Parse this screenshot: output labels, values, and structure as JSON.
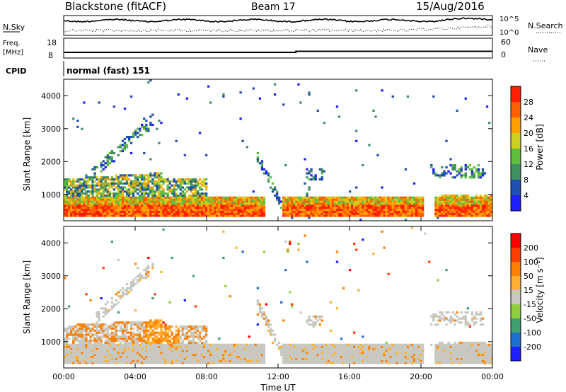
{
  "header": {
    "station": "Blackstone (fitACF)",
    "beam": "Beam 17",
    "date": "15/Aug/2016"
  },
  "noise_panel": {
    "left_label": "N.Sky",
    "right_label": "N.Search",
    "right_ticks": [
      "10^5",
      "10^0"
    ]
  },
  "freq_panel": {
    "left_label_1": "Freq.",
    "left_label_2": "[MHz]",
    "left_ticks": [
      "18",
      "8"
    ],
    "right_label": "Nave",
    "right_ticks": [
      "60",
      "0"
    ]
  },
  "cpid": {
    "label": "CPID",
    "value": "normal (fast) 151"
  },
  "colors": {
    "power_scale": [
      "#1f1fff",
      "#1f4faf",
      "#3f8f5f",
      "#5fbf3f",
      "#cfcf1f",
      "#ff9f00",
      "#ff5f00",
      "#ff1f00"
    ],
    "velocity_scale": [
      "#1f1fff",
      "#1f6fcf",
      "#3fa06f",
      "#8fcf3f",
      "#c8c8c0",
      "#ffb030",
      "#ff7f00",
      "#ff3f00",
      "#ff0000"
    ],
    "ground_scatter": "#c8c8c0"
  },
  "chart_data": [
    {
      "type": "heatmap",
      "title": "",
      "xlabel": "Time UT",
      "ylabel": "Slant Range [km]",
      "x_ticks": [
        "00:00",
        "04:00",
        "08:00",
        "12:00",
        "16:00",
        "20:00",
        "00:00"
      ],
      "y_ticks": [
        "1000",
        "2000",
        "3000",
        "4000"
      ],
      "ylim": [
        200,
        4500
      ],
      "xlim_hours": [
        0,
        24
      ],
      "colorbar": {
        "label": "Power [dB]",
        "ticks": [
          "4",
          "8",
          "12",
          "16",
          "20",
          "24",
          "28"
        ],
        "range": [
          0,
          30
        ]
      }
    },
    {
      "type": "heatmap",
      "title": "",
      "xlabel": "Time UT",
      "ylabel": "Slant Range [km]",
      "x_ticks": [
        "00:00",
        "04:00",
        "08:00",
        "12:00",
        "16:00",
        "20:00",
        "00:00"
      ],
      "y_ticks": [
        "1000",
        "2000",
        "3000",
        "4000"
      ],
      "ylim": [
        200,
        4500
      ],
      "xlim_hours": [
        0,
        24
      ],
      "colorbar": {
        "label": "Velocity [m s⁻¹]",
        "ticks": [
          "200",
          "100",
          "50",
          "15",
          "-15",
          "-50",
          "-100",
          "-200"
        ]
      }
    }
  ]
}
